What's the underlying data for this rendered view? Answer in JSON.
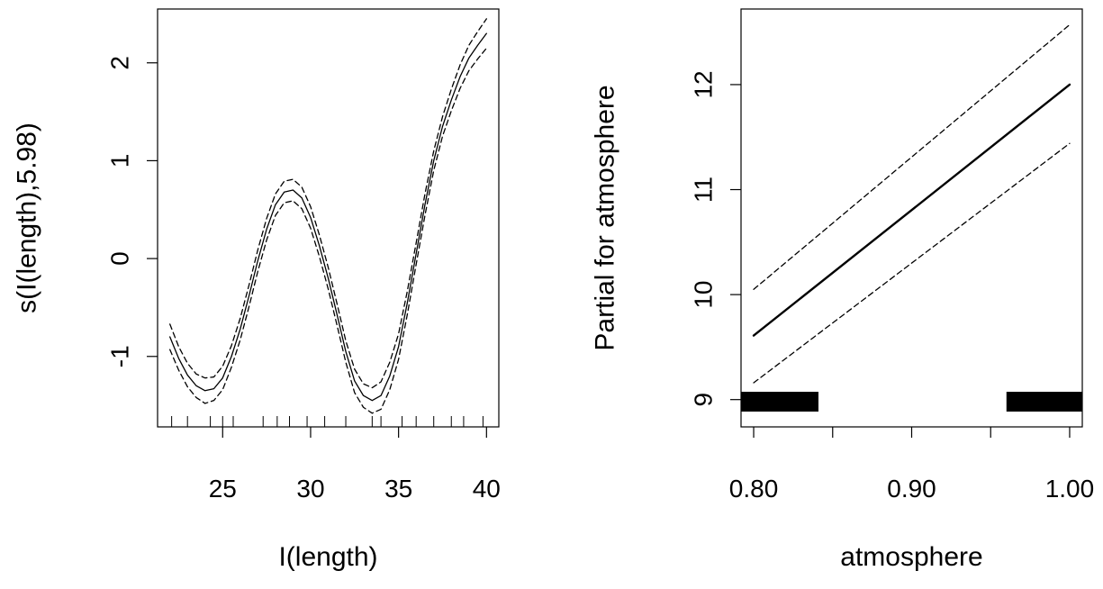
{
  "chart_data": [
    {
      "type": "line",
      "xlabel": "I(length)",
      "ylabel": "s(I(length),5.98)",
      "xlim": [
        21.3,
        40.7
      ],
      "ylim": [
        -1.72,
        2.55
      ],
      "xticks": [
        25,
        30,
        35,
        40
      ],
      "yticks": [
        -1,
        0,
        1,
        2
      ],
      "rug": [
        22.1,
        23.0,
        24.3,
        25.0,
        25.6,
        27.3,
        28.1,
        28.8,
        29.8,
        30.8,
        32.0,
        33.5,
        34.0,
        35.2,
        36.0,
        37.0,
        38.0,
        38.7,
        39.8
      ],
      "series": [
        {
          "role": "estimate",
          "x": [
            22.0,
            22.5,
            23.0,
            23.5,
            24.0,
            24.5,
            25.0,
            25.5,
            26.0,
            26.5,
            27.0,
            27.5,
            28.0,
            28.5,
            29.0,
            29.5,
            30.0,
            30.5,
            31.0,
            31.5,
            32.0,
            32.5,
            33.0,
            33.5,
            34.0,
            34.5,
            35.0,
            35.5,
            36.0,
            36.5,
            37.0,
            37.5,
            38.0,
            38.5,
            39.0,
            39.5,
            40.0
          ],
          "y": [
            -0.8,
            -1.02,
            -1.19,
            -1.3,
            -1.35,
            -1.33,
            -1.22,
            -1.0,
            -0.72,
            -0.38,
            -0.02,
            0.3,
            0.55,
            0.68,
            0.7,
            0.62,
            0.42,
            0.13,
            -0.2,
            -0.57,
            -0.95,
            -1.25,
            -1.4,
            -1.45,
            -1.4,
            -1.2,
            -0.9,
            -0.45,
            0.05,
            0.55,
            1.0,
            1.35,
            1.62,
            1.86,
            2.05,
            2.18,
            2.3
          ]
        },
        {
          "role": "upper",
          "x": [
            22.0,
            22.5,
            23.0,
            23.5,
            24.0,
            24.5,
            25.0,
            25.5,
            26.0,
            26.5,
            27.0,
            27.5,
            28.0,
            28.5,
            29.0,
            29.5,
            30.0,
            30.5,
            31.0,
            31.5,
            32.0,
            32.5,
            33.0,
            33.5,
            34.0,
            34.5,
            35.0,
            35.5,
            36.0,
            36.5,
            37.0,
            37.5,
            38.0,
            38.5,
            39.0,
            39.5,
            40.0
          ],
          "y": [
            -0.67,
            -0.9,
            -1.07,
            -1.18,
            -1.22,
            -1.21,
            -1.1,
            -0.89,
            -0.61,
            -0.27,
            0.09,
            0.41,
            0.66,
            0.79,
            0.81,
            0.73,
            0.53,
            0.24,
            -0.09,
            -0.46,
            -0.84,
            -1.13,
            -1.28,
            -1.32,
            -1.26,
            -1.06,
            -0.77,
            -0.33,
            0.16,
            0.66,
            1.1,
            1.45,
            1.73,
            1.98,
            2.18,
            2.32,
            2.45
          ]
        },
        {
          "role": "lower",
          "x": [
            22.0,
            22.5,
            23.0,
            23.5,
            24.0,
            24.5,
            25.0,
            25.5,
            26.0,
            26.5,
            27.0,
            27.5,
            28.0,
            28.5,
            29.0,
            29.5,
            30.0,
            30.5,
            31.0,
            31.5,
            32.0,
            32.5,
            33.0,
            33.5,
            34.0,
            34.5,
            35.0,
            35.5,
            36.0,
            36.5,
            37.0,
            37.5,
            38.0,
            38.5,
            39.0,
            39.5,
            40.0
          ],
          "y": [
            -0.93,
            -1.14,
            -1.31,
            -1.42,
            -1.48,
            -1.45,
            -1.34,
            -1.11,
            -0.83,
            -0.49,
            -0.13,
            0.19,
            0.44,
            0.57,
            0.59,
            0.51,
            0.31,
            0.02,
            -0.31,
            -0.68,
            -1.06,
            -1.37,
            -1.52,
            -1.58,
            -1.54,
            -1.34,
            -1.03,
            -0.57,
            -0.06,
            0.44,
            0.9,
            1.25,
            1.51,
            1.74,
            1.92,
            2.04,
            2.15
          ]
        }
      ]
    },
    {
      "type": "line",
      "xlabel": "atmosphere",
      "ylabel": "Partial for atmosphere",
      "xlim": [
        0.792,
        1.008
      ],
      "ylim": [
        8.74,
        12.72
      ],
      "xticks": [
        0.8,
        0.85,
        0.9,
        0.95,
        1.0
      ],
      "xtick_labels": [
        "0.80",
        "",
        "0.90",
        "",
        "1.00"
      ],
      "yticks": [
        9,
        10,
        11,
        12
      ],
      "rug_bars": [
        [
          0.792,
          0.841
        ],
        [
          0.96,
          1.008
        ]
      ],
      "series": [
        {
          "role": "estimate",
          "x": [
            0.8,
            1.0
          ],
          "y": [
            9.61,
            12.0
          ]
        },
        {
          "role": "upper",
          "x": [
            0.8,
            1.0
          ],
          "y": [
            10.05,
            12.57
          ]
        },
        {
          "role": "lower",
          "x": [
            0.8,
            1.0
          ],
          "y": [
            9.16,
            11.44
          ]
        }
      ]
    }
  ]
}
